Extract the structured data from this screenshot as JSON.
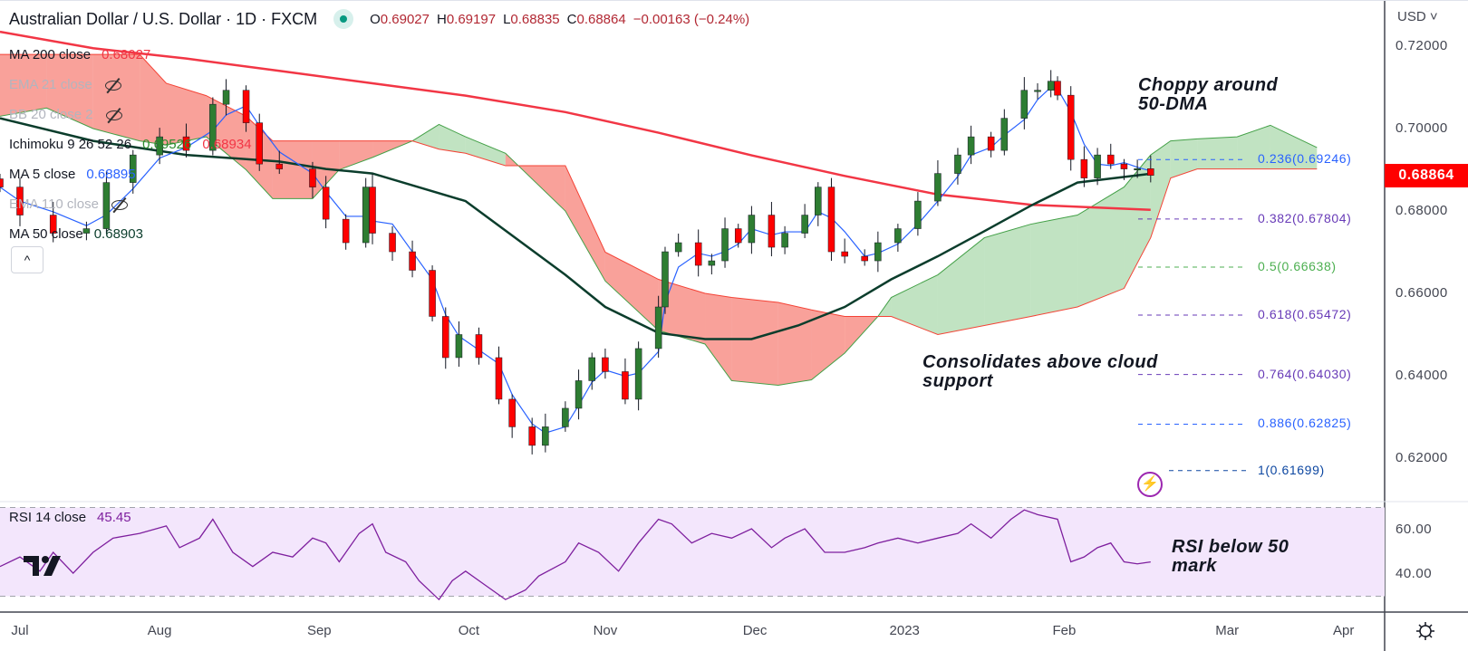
{
  "header": {
    "title": "Australian Dollar / U.S. Dollar · 1D · FXCM",
    "ohlc": [
      {
        "k": "O",
        "v": "0.69027"
      },
      {
        "k": "H",
        "v": "0.69197"
      },
      {
        "k": "L",
        "v": "0.68835"
      },
      {
        "k": "C",
        "v": "0.68864"
      }
    ],
    "change": "−0.00163 (−0.24%)"
  },
  "legend": [
    {
      "label": "MA 200 close",
      "values": [
        "0.68027"
      ],
      "colors": [
        "#f23645"
      ],
      "hidden": false
    },
    {
      "label": "EMA 21 close",
      "values": [],
      "colors": [],
      "hidden": true
    },
    {
      "label": "BB 20 close 2",
      "values": [],
      "colors": [],
      "hidden": true
    },
    {
      "label": "Ichimoku 9 26 52 26",
      "values": [
        "0.69526",
        "0.68934"
      ],
      "colors": [
        "#2e8b2e",
        "#f23645"
      ],
      "hidden": false
    },
    {
      "label": "MA 5 close",
      "values": [
        "0.68895"
      ],
      "colors": [
        "#2962ff"
      ],
      "hidden": false
    },
    {
      "label": "EMA 110 close",
      "values": [],
      "colors": [],
      "hidden": true
    },
    {
      "label": "MA 50 close",
      "values": [
        "0.68903"
      ],
      "colors": [
        "#0b3d2c"
      ],
      "hidden": false
    }
  ],
  "collapse_label": "^",
  "price_axis": {
    "currency": "USD",
    "last_price": "0.68864",
    "last_color": "#ff0000"
  },
  "annotations": {
    "choppy": [
      "Choppy around",
      "50-DMA"
    ],
    "cloud": [
      "Consolidates above cloud",
      "support"
    ],
    "rsi": [
      "RSI below 50",
      "mark"
    ]
  },
  "rsi_legend": {
    "label": "RSI 14 close",
    "value": "45.45"
  },
  "chart_data": {
    "type": "candlestick",
    "title": "Australian Dollar / U.S. Dollar · 1D · FXCM",
    "ylim": [
      0.612,
      0.7305
    ],
    "y_ticks": [
      {
        "value": 0.72,
        "label": "0.72000"
      },
      {
        "value": 0.7,
        "label": "0.70000"
      },
      {
        "value": 0.68,
        "label": "0.68000"
      },
      {
        "value": 0.66,
        "label": "0.66000"
      },
      {
        "value": 0.64,
        "label": "0.64000"
      },
      {
        "value": 0.62,
        "label": "0.62000"
      }
    ],
    "x_ticks": [
      {
        "label": "Jul",
        "bar": 0
      },
      {
        "label": "Aug",
        "bar": 21
      },
      {
        "label": "Sep",
        "bar": 45
      },
      {
        "label": "Oct",
        "bar": 67.5
      },
      {
        "label": "Nov",
        "bar": 88
      },
      {
        "label": "Dec",
        "bar": 110.5
      },
      {
        "label": "2023",
        "bar": 133
      },
      {
        "label": "Feb",
        "bar": 157
      },
      {
        "label": "Mar",
        "bar": 181.5
      },
      {
        "label": "Apr",
        "bar": 199
      }
    ],
    "closes": [
      [
        -3,
        0.6858
      ],
      [
        0,
        0.679
      ],
      [
        5,
        0.6746
      ],
      [
        10,
        0.6757
      ],
      [
        13,
        0.6869
      ],
      [
        17,
        0.6936
      ],
      [
        21,
        0.698
      ],
      [
        25,
        0.6947
      ],
      [
        29,
        0.7059
      ],
      [
        31,
        0.7093
      ],
      [
        34,
        0.7014
      ],
      [
        36,
        0.6914
      ],
      [
        39,
        0.6902
      ],
      [
        44,
        0.6858
      ],
      [
        46,
        0.678
      ],
      [
        49,
        0.6723
      ],
      [
        52,
        0.6858
      ],
      [
        53,
        0.6746
      ],
      [
        56,
        0.6701
      ],
      [
        59,
        0.6656
      ],
      [
        62,
        0.6544
      ],
      [
        64,
        0.6444
      ],
      [
        66,
        0.65
      ],
      [
        69,
        0.6444
      ],
      [
        72,
        0.6343
      ],
      [
        74,
        0.6276
      ],
      [
        77,
        0.6231
      ],
      [
        79,
        0.6276
      ],
      [
        82,
        0.6321
      ],
      [
        84,
        0.6388
      ],
      [
        86,
        0.6444
      ],
      [
        88,
        0.641
      ],
      [
        91,
        0.6343
      ],
      [
        93,
        0.6466
      ],
      [
        96,
        0.6567
      ],
      [
        97,
        0.6701
      ],
      [
        99,
        0.6723
      ],
      [
        102,
        0.6668
      ],
      [
        104,
        0.6679
      ],
      [
        106,
        0.6757
      ],
      [
        108,
        0.6723
      ],
      [
        110,
        0.679
      ],
      [
        113,
        0.6712
      ],
      [
        115,
        0.6746
      ],
      [
        118,
        0.679
      ],
      [
        120,
        0.6858
      ],
      [
        122,
        0.6701
      ],
      [
        124,
        0.669
      ],
      [
        127,
        0.6679
      ],
      [
        129,
        0.6723
      ],
      [
        132,
        0.6757
      ],
      [
        135,
        0.6824
      ],
      [
        138,
        0.6891
      ],
      [
        141,
        0.6936
      ],
      [
        143,
        0.698
      ],
      [
        146,
        0.6947
      ],
      [
        148,
        0.7025
      ],
      [
        151,
        0.7093
      ],
      [
        153,
        0.7093
      ],
      [
        155,
        0.7115
      ],
      [
        156,
        0.7081
      ],
      [
        158,
        0.6925
      ],
      [
        160,
        0.688
      ],
      [
        162,
        0.6936
      ],
      [
        164,
        0.6914
      ],
      [
        166,
        0.6902
      ],
      [
        168,
        0.69027
      ],
      [
        170,
        0.68864
      ]
    ],
    "ma200": [
      [
        -3,
        0.7235
      ],
      [
        11,
        0.7195
      ],
      [
        25,
        0.717
      ],
      [
        39,
        0.714
      ],
      [
        53,
        0.711
      ],
      [
        67,
        0.708
      ],
      [
        82,
        0.704
      ],
      [
        96,
        0.699
      ],
      [
        110,
        0.6935
      ],
      [
        124,
        0.6885
      ],
      [
        138,
        0.684
      ],
      [
        152,
        0.6815
      ],
      [
        170,
        0.68027
      ]
    ],
    "ma50": [
      [
        -3,
        0.7025
      ],
      [
        11,
        0.697
      ],
      [
        25,
        0.6936
      ],
      [
        39,
        0.692
      ],
      [
        46,
        0.6902
      ],
      [
        53,
        0.6891
      ],
      [
        67,
        0.6824
      ],
      [
        82,
        0.6645
      ],
      [
        88,
        0.6567
      ],
      [
        96,
        0.6504
      ],
      [
        103,
        0.6489
      ],
      [
        110,
        0.6489
      ],
      [
        117,
        0.6522
      ],
      [
        124,
        0.6567
      ],
      [
        131,
        0.6634
      ],
      [
        138,
        0.669
      ],
      [
        145,
        0.6751
      ],
      [
        152,
        0.6813
      ],
      [
        159,
        0.6869
      ],
      [
        170,
        0.68903
      ]
    ],
    "ichimoku_cloud": [
      [
        -3,
        0.703,
        0.718
      ],
      [
        4,
        0.705,
        0.718
      ],
      [
        11,
        0.7,
        0.718
      ],
      [
        18,
        0.697,
        0.718
      ],
      [
        22,
        0.696,
        0.711
      ],
      [
        28,
        0.698,
        0.708
      ],
      [
        34,
        0.69,
        0.703
      ],
      [
        38,
        0.683,
        0.697
      ],
      [
        44,
        0.683,
        0.697
      ],
      [
        48,
        0.69,
        0.697
      ],
      [
        53,
        0.693,
        0.697
      ],
      [
        59,
        0.697,
        0.697
      ],
      [
        63,
        0.701,
        0.695
      ],
      [
        67,
        0.698,
        0.694
      ],
      [
        73,
        0.694,
        0.691
      ],
      [
        82,
        0.68,
        0.691
      ],
      [
        88,
        0.663,
        0.67
      ],
      [
        96,
        0.651,
        0.6634
      ],
      [
        103,
        0.6477,
        0.66
      ],
      [
        107,
        0.6388,
        0.659
      ],
      [
        114,
        0.6377,
        0.6578
      ],
      [
        119,
        0.639,
        0.656
      ],
      [
        124,
        0.6455,
        0.6544
      ],
      [
        129,
        0.6544,
        0.6544
      ],
      [
        131,
        0.659,
        0.6544
      ],
      [
        138,
        0.6645,
        0.65
      ],
      [
        145,
        0.6735,
        0.6522
      ],
      [
        152,
        0.6768,
        0.6544
      ],
      [
        159,
        0.679,
        0.6567
      ],
      [
        166,
        0.6858,
        0.6612
      ],
      [
        170,
        0.6936,
        0.6735
      ],
      [
        173,
        0.697,
        0.688
      ],
      [
        177,
        0.6975,
        0.6902
      ],
      [
        183,
        0.698,
        0.6902
      ],
      [
        188,
        0.7008,
        0.6902
      ],
      [
        195,
        0.6954,
        0.6902
      ]
    ],
    "fibonacci": [
      {
        "label": "0.236(0.69246)",
        "price": 0.69246,
        "color": "#2962ff"
      },
      {
        "label": "0.382(0.67804)",
        "price": 0.67804,
        "color": "#673ab7"
      },
      {
        "label": "0.5(0.66638)",
        "price": 0.66638,
        "color": "#4caf50"
      },
      {
        "label": "0.618(0.65472)",
        "price": 0.65472,
        "color": "#673ab7"
      },
      {
        "label": "0.764(0.64030)",
        "price": 0.6403,
        "color": "#673ab7"
      },
      {
        "label": "0.886(0.62825)",
        "price": 0.62825,
        "color": "#2962ff"
      },
      {
        "label": "1(0.61699)",
        "price": 0.61699,
        "color": "#0d47a1"
      }
    ],
    "rsi": {
      "period": 14,
      "ylim": [
        30,
        70
      ],
      "band": [
        30,
        70
      ],
      "ticks": [
        {
          "value": 60,
          "label": "60.00"
        },
        {
          "value": 40,
          "label": "40.00"
        }
      ],
      "values": [
        [
          -3,
          43.4
        ],
        [
          0,
          47.7
        ],
        [
          3,
          41.3
        ],
        [
          5,
          49.8
        ],
        [
          8,
          40.4
        ],
        [
          11,
          49.8
        ],
        [
          14,
          56.2
        ],
        [
          18,
          58.3
        ],
        [
          22,
          61.7
        ],
        [
          24,
          51.9
        ],
        [
          27,
          56.2
        ],
        [
          29,
          64.7
        ],
        [
          32,
          49.8
        ],
        [
          35,
          43.4
        ],
        [
          38,
          49.8
        ],
        [
          41,
          47.7
        ],
        [
          44,
          56.2
        ],
        [
          46,
          54
        ],
        [
          48,
          45.5
        ],
        [
          51,
          58.3
        ],
        [
          53,
          62.6
        ],
        [
          55,
          49.8
        ],
        [
          58,
          45.5
        ],
        [
          60,
          37
        ],
        [
          63,
          28.5
        ],
        [
          65,
          37
        ],
        [
          67,
          41.3
        ],
        [
          70,
          34.9
        ],
        [
          73,
          28.5
        ],
        [
          76,
          32.8
        ],
        [
          78,
          39.1
        ],
        [
          82,
          45.5
        ],
        [
          84,
          54
        ],
        [
          87,
          49.8
        ],
        [
          90,
          41.3
        ],
        [
          93,
          54
        ],
        [
          96,
          64.7
        ],
        [
          98,
          62.6
        ],
        [
          101,
          54
        ],
        [
          104,
          58.3
        ],
        [
          107,
          56.2
        ],
        [
          110,
          60.4
        ],
        [
          113,
          51.9
        ],
        [
          115,
          56.2
        ],
        [
          118,
          60.4
        ],
        [
          121,
          49.8
        ],
        [
          124,
          49.8
        ],
        [
          127,
          51.9
        ],
        [
          129,
          54
        ],
        [
          132,
          56.2
        ],
        [
          135,
          54
        ],
        [
          138,
          56.2
        ],
        [
          141,
          58.3
        ],
        [
          143,
          62.6
        ],
        [
          146,
          56.2
        ],
        [
          149,
          64.7
        ],
        [
          151,
          68.9
        ],
        [
          153,
          66.8
        ],
        [
          156,
          64.7
        ],
        [
          158,
          45.5
        ],
        [
          160,
          47.7
        ],
        [
          162,
          51.9
        ],
        [
          164,
          54
        ],
        [
          166,
          45.5
        ],
        [
          168,
          44.6
        ],
        [
          170,
          45.45
        ]
      ]
    }
  }
}
